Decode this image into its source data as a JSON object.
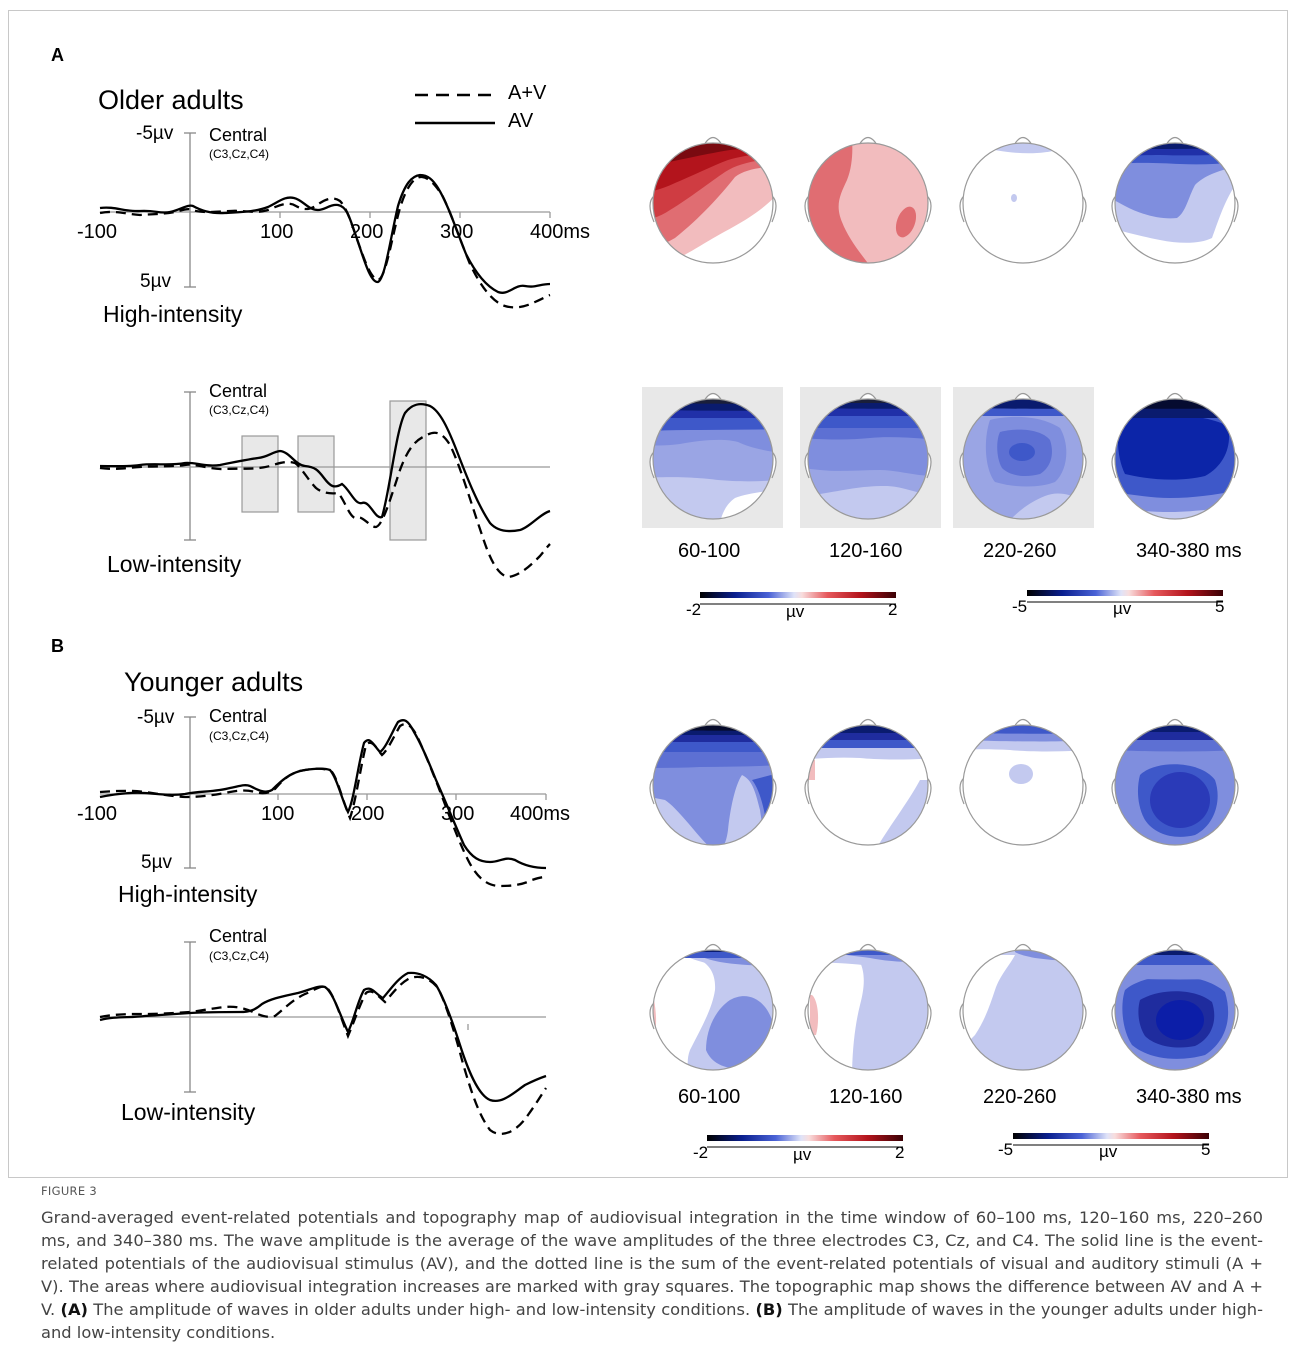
{
  "figure": {
    "panel_a": {
      "label": "A",
      "group": "Older adults",
      "legend": {
        "dashed": "A+V",
        "solid": "AV"
      },
      "high": {
        "ytop": "-5µv",
        "ybottom": "5µv",
        "channel": "Central",
        "electrodes": "(C3,Cz,C4)",
        "ticks": [
          "-100",
          "100",
          "200",
          "300",
          "400ms"
        ],
        "condition": "High-intensity"
      },
      "low": {
        "channel": "Central",
        "electrodes": "(C3,Cz,C4)",
        "condition": "Low-intensity"
      },
      "windows": [
        "60-100",
        "120-160",
        "220-260",
        "340-380 ms"
      ],
      "scale1": {
        "min": "-2",
        "unit": "µv",
        "max": "2"
      },
      "scale2": {
        "min": "-5",
        "unit": "µv",
        "max": "5"
      }
    },
    "panel_b": {
      "label": "B",
      "group": "Younger adults",
      "high": {
        "ytop": "-5µv",
        "ybottom": "5µv",
        "channel": "Central",
        "electrodes": "(C3,Cz,C4)",
        "ticks": [
          "-100",
          "100",
          "200",
          "300",
          "400ms"
        ],
        "condition": "High-intensity"
      },
      "low": {
        "channel": "Central",
        "electrodes": "(C3,Cz,C4)",
        "condition": "Low-intensity"
      },
      "windows": [
        "60-100",
        "120-160",
        "220-260",
        "340-380 ms"
      ],
      "scale1": {
        "min": "-2",
        "unit": "µv",
        "max": "2"
      },
      "scale2": {
        "min": "-5",
        "unit": "µv",
        "max": "5"
      }
    },
    "colors": {
      "dark_blue": "#0a1b6e",
      "mid_blue": "#3e58c9",
      "light_blue": "#c3c9ef",
      "dark_red": "#b3141c",
      "light_red": "#f2bcbe",
      "highlight": "#e8e8e8"
    }
  },
  "caption": {
    "label": "FIGURE 3",
    "text_1": "Grand-averaged event-related potentials and topography map of audiovisual integration in the time window of 60–100 ms, 120–160 ms, 220–260 ms, and 340–380 ms. The wave amplitude is the average of the wave amplitudes of the three electrodes C3, Cz, and C4. The solid line is the event-related potentials of the audiovisual stimulus (AV), and the dotted line is the sum of the event-related potentials of visual and auditory stimuli (A + V). The areas where audiovisual integration increases are marked with gray squares. The topographic map shows the difference between AV and A + V.",
    "a_ref": "(A)",
    "text_2": "The amplitude of waves in older adults under high- and low-intensity conditions.",
    "b_ref": "(B)",
    "text_3": "The amplitude of waves in the younger adults under high- and low-intensity conditions."
  }
}
